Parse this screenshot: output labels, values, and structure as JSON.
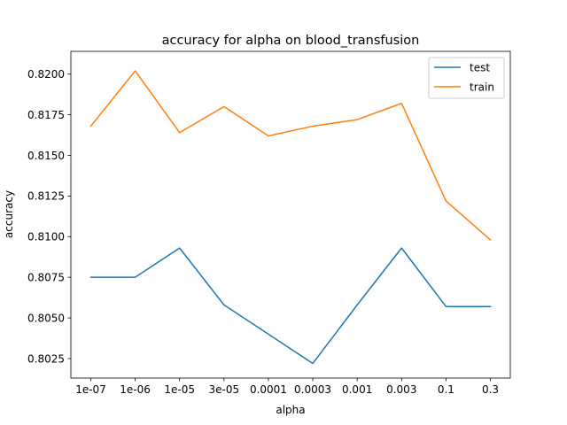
{
  "chart_data": {
    "type": "line",
    "title": "accuracy for alpha on  blood_transfusion",
    "xlabel": "alpha",
    "ylabel": "accuracy",
    "categories": [
      "1e-07",
      "1e-06",
      "1e-05",
      "3e-05",
      "0.0001",
      "0.0003",
      "0.001",
      "0.003",
      "0.1",
      "0.3"
    ],
    "ylim": [
      0.8013,
      0.8214
    ],
    "yticks": [
      "0.8025",
      "0.8050",
      "0.8075",
      "0.8100",
      "0.8125",
      "0.8150",
      "0.8175",
      "0.8200"
    ],
    "grid": false,
    "legend_position": "top-right",
    "series": [
      {
        "name": "test",
        "color": "#1f77b4",
        "values": [
          0.8075,
          0.8075,
          0.8093,
          0.8058,
          0.804,
          0.8022,
          0.8058,
          0.8093,
          0.8057,
          0.8057
        ]
      },
      {
        "name": "train",
        "color": "#ff7f0e",
        "values": [
          0.8168,
          0.8202,
          0.8164,
          0.818,
          0.8162,
          0.8168,
          0.8172,
          0.8182,
          0.8122,
          0.8098
        ]
      }
    ]
  }
}
